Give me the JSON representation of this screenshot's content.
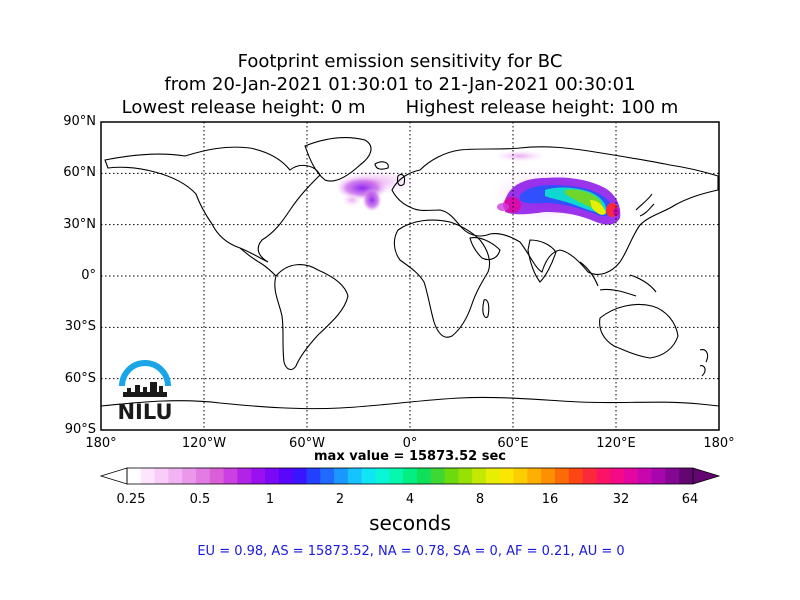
{
  "title": {
    "line1": "Footprint emission sensitivity for BC",
    "line2": "from 20-Jan-2021 01:30:01 to 21-Jan-2021 00:30:01",
    "line3": "Lowest release height: 0 m       Highest release height: 100 m"
  },
  "axes": {
    "lat_labels": [
      "90°N",
      "60°N",
      "30°N",
      "0°",
      "30°S",
      "60°S",
      "90°S"
    ],
    "lon_labels": [
      "180°",
      "120°W",
      "60°W",
      "0°",
      "60°E",
      "120°E",
      "180°"
    ],
    "lat_values": [
      90,
      60,
      30,
      0,
      -30,
      -60,
      -90
    ],
    "lon_values": [
      -180,
      -120,
      -60,
      0,
      60,
      120,
      180
    ],
    "grid": true
  },
  "max_value": "max value = 15873.52 sec",
  "colorbar": {
    "tick_labels": [
      "0.25",
      "0.5",
      "1",
      "2",
      "4",
      "8",
      "16",
      "32",
      "64"
    ],
    "units": "seconds",
    "colors": [
      "#ffffff",
      "#fde6fd",
      "#f8cdf8",
      "#f2b3f2",
      "#eb98eb",
      "#e27ce2",
      "#d85fd8",
      "#cc3fe0",
      "#b223e8",
      "#9a10f0",
      "#7a09f5",
      "#5a06fa",
      "#3a14ff",
      "#2440ff",
      "#1f6bff",
      "#1b98ff",
      "#17c3ff",
      "#10e6f3",
      "#09f7d6",
      "#05f8ae",
      "#03ef82",
      "#0fe05a",
      "#3ed733",
      "#6bdb10",
      "#97e106",
      "#c4e803",
      "#e8ee02",
      "#fbe603",
      "#fdcd03",
      "#fdaf03",
      "#fd8f04",
      "#fd6a08",
      "#fc4714",
      "#fb2a3a",
      "#fa1465",
      "#f40987",
      "#e306a0",
      "#c806ad",
      "#a806ad",
      "#860694",
      "#640672"
    ]
  },
  "region_summary": "EU = 0.98,  AS = 15873.52,  NA = 0.78,  SA = 0,  AF = 0.21,  AU = 0",
  "logo": {
    "text": "NILU",
    "color": "#1aa6e6"
  }
}
